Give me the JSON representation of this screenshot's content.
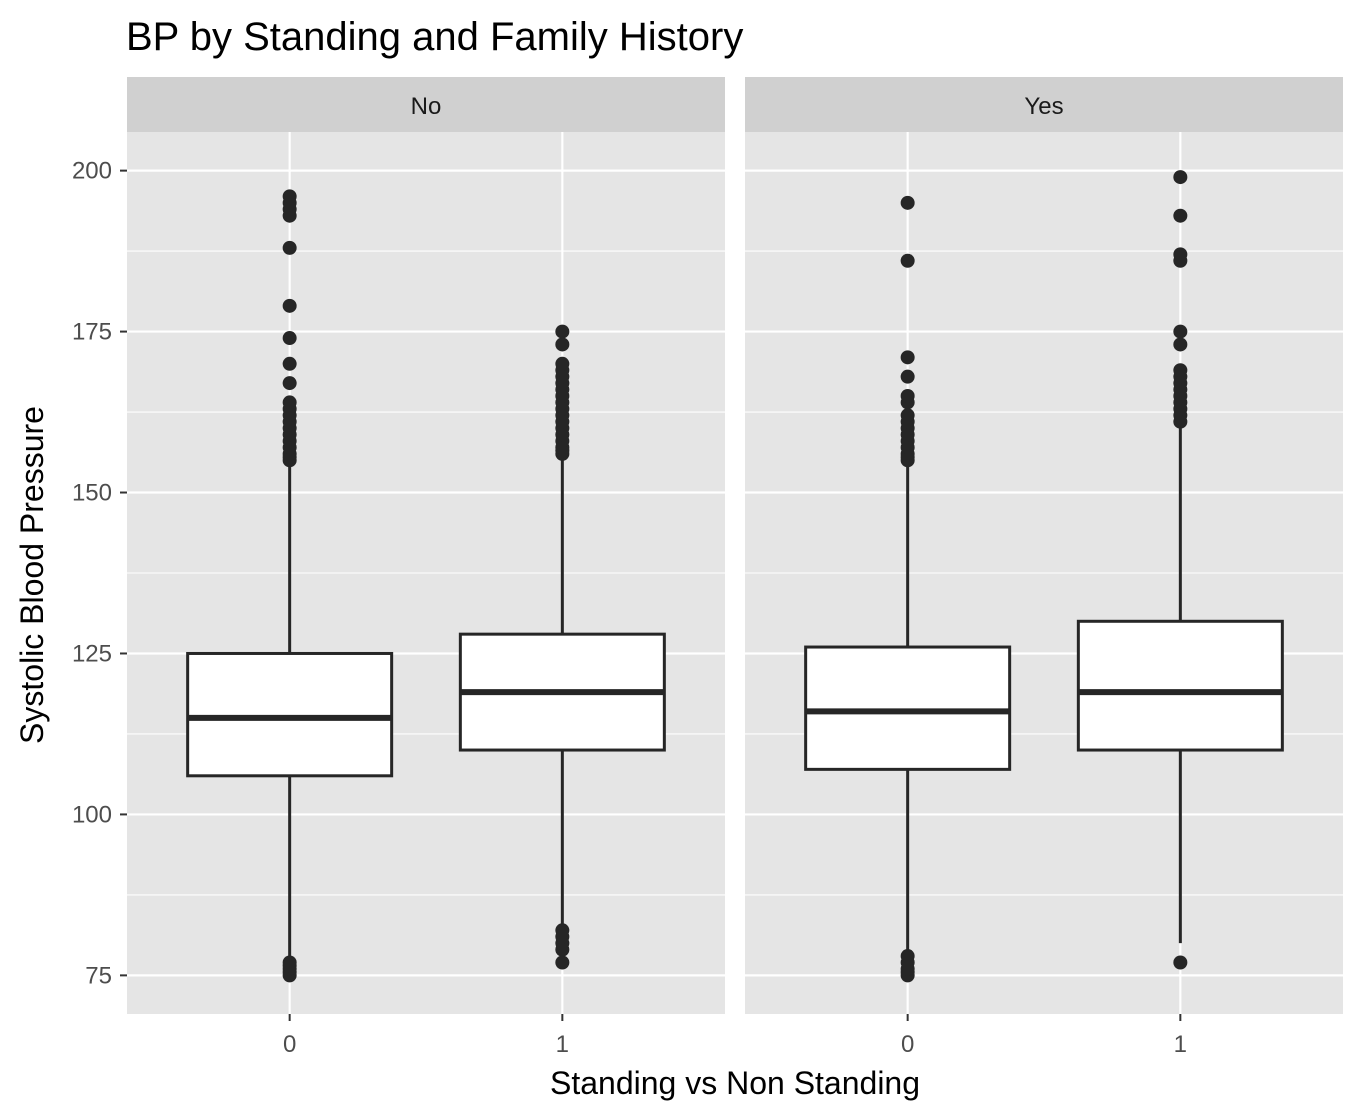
{
  "chart_data": {
    "type": "boxplot",
    "title": "BP by Standing and Family History",
    "xlabel": "Standing vs Non Standing",
    "ylabel": "Systolic Blood Pressure",
    "ylim": [
      69,
      206
    ],
    "yticks": [
      75,
      100,
      125,
      150,
      175,
      200
    ],
    "categories": [
      "0",
      "1"
    ],
    "grid": true,
    "legend": "none",
    "colors": {
      "panel_bg": "#e5e5e5",
      "grid": "#ffffff",
      "strip_bg": "#d0d0d0",
      "box_fill": "#ffffff",
      "box_line": "#262626",
      "point": "#262626"
    },
    "facets": [
      {
        "label": "No",
        "boxes": [
          {
            "category": "0",
            "whisker_low": 78,
            "q1": 106,
            "median": 115,
            "q3": 125,
            "whisker_high": 154,
            "outliers": [
              75,
              75.5,
              76,
              76.5,
              77,
              155,
              155.5,
              156,
              157,
              158,
              159,
              160,
              161,
              162,
              163,
              164,
              167,
              170,
              174,
              179,
              188,
              193,
              194,
              195,
              196
            ]
          },
          {
            "category": "1",
            "whisker_low": 83,
            "q1": 110,
            "median": 119,
            "q3": 128,
            "whisker_high": 155,
            "outliers": [
              77,
              79,
              80,
              81,
              82,
              156,
              156.5,
              157,
              158,
              159,
              160,
              161,
              162,
              163,
              164,
              165,
              166,
              167,
              168,
              169,
              170,
              173,
              175
            ]
          }
        ]
      },
      {
        "label": "Yes",
        "boxes": [
          {
            "category": "0",
            "whisker_low": 79,
            "q1": 107,
            "median": 116,
            "q3": 126,
            "whisker_high": 154,
            "outliers": [
              75,
              75.5,
              76,
              77,
              78,
              155,
              155.5,
              156,
              157,
              158,
              159,
              160,
              161,
              162,
              164,
              165,
              168,
              171,
              186,
              195
            ]
          },
          {
            "category": "1",
            "whisker_low": 80,
            "q1": 110,
            "median": 119,
            "q3": 130,
            "whisker_high": 160,
            "outliers": [
              77,
              161,
              162,
              163,
              164,
              165,
              166,
              167,
              168,
              169,
              173,
              175,
              186,
              187,
              193,
              199
            ]
          }
        ]
      }
    ]
  }
}
